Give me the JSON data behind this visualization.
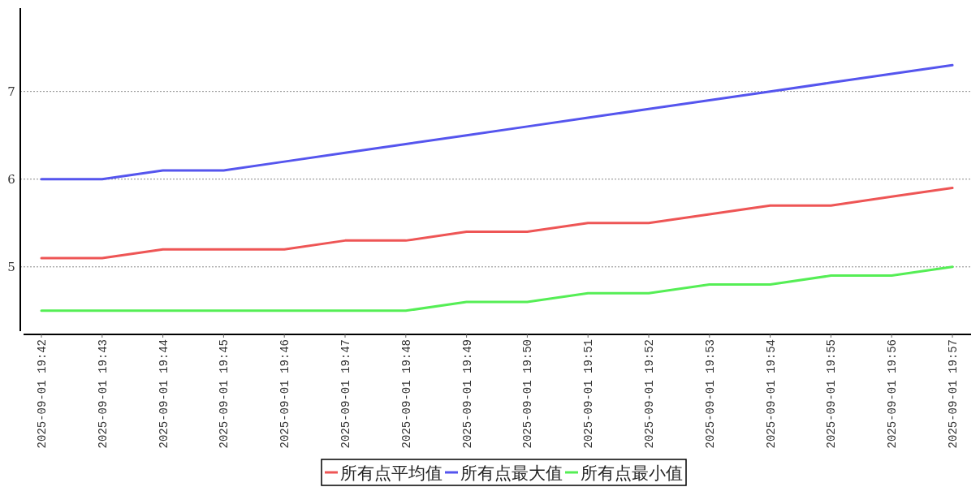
{
  "chart_data": {
    "type": "line",
    "categories": [
      "2025-09-01 19:42",
      "2025-09-01 19:43",
      "2025-09-01 19:44",
      "2025-09-01 19:45",
      "2025-09-01 19:46",
      "2025-09-01 19:47",
      "2025-09-01 19:48",
      "2025-09-01 19:49",
      "2025-09-01 19:50",
      "2025-09-01 19:51",
      "2025-09-01 19:52",
      "2025-09-01 19:53",
      "2025-09-01 19:54",
      "2025-09-01 19:55",
      "2025-09-01 19:56",
      "2025-09-01 19:57"
    ],
    "series": [
      {
        "name": "所有点平均值",
        "color": "#ee5555",
        "values": [
          5.1,
          5.1,
          5.2,
          5.2,
          5.2,
          5.3,
          5.3,
          5.4,
          5.4,
          5.5,
          5.5,
          5.6,
          5.7,
          5.7,
          5.8,
          5.9
        ]
      },
      {
        "name": "所有点最大值",
        "color": "#5555ee",
        "values": [
          6.0,
          6.0,
          6.1,
          6.1,
          6.2,
          6.3,
          6.4,
          6.5,
          6.6,
          6.7,
          6.8,
          6.9,
          7.0,
          7.1,
          7.2,
          7.3
        ]
      },
      {
        "name": "所有点最小值",
        "color": "#55ee55",
        "values": [
          4.5,
          4.5,
          4.5,
          4.5,
          4.5,
          4.5,
          4.5,
          4.6,
          4.6,
          4.7,
          4.7,
          4.8,
          4.8,
          4.9,
          4.9,
          5.0
        ]
      }
    ],
    "ylim": [
      4.23,
      7.95
    ],
    "yticks": [
      5,
      6,
      7
    ],
    "grid": "y",
    "legend": "bottom"
  }
}
